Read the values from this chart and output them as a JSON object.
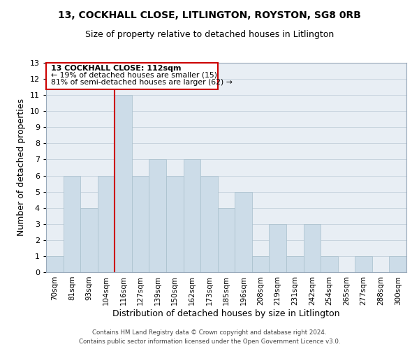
{
  "title1": "13, COCKHALL CLOSE, LITLINGTON, ROYSTON, SG8 0RB",
  "title2": "Size of property relative to detached houses in Litlington",
  "xlabel": "Distribution of detached houses by size in Litlington",
  "ylabel": "Number of detached properties",
  "footer1": "Contains HM Land Registry data © Crown copyright and database right 2024.",
  "footer2": "Contains public sector information licensed under the Open Government Licence v3.0.",
  "bin_labels": [
    "70sqm",
    "81sqm",
    "93sqm",
    "104sqm",
    "116sqm",
    "127sqm",
    "139sqm",
    "150sqm",
    "162sqm",
    "173sqm",
    "185sqm",
    "196sqm",
    "208sqm",
    "219sqm",
    "231sqm",
    "242sqm",
    "254sqm",
    "265sqm",
    "277sqm",
    "288sqm",
    "300sqm"
  ],
  "bar_heights": [
    1,
    6,
    4,
    6,
    11,
    6,
    7,
    6,
    7,
    6,
    4,
    5,
    1,
    3,
    1,
    3,
    1,
    0,
    1,
    0,
    1
  ],
  "bar_color": "#ccdce8",
  "bar_edge_color": "#a8bfcc",
  "highlight_line_color": "#cc0000",
  "annotation_title": "13 COCKHALL CLOSE: 112sqm",
  "annotation_line1": "← 19% of detached houses are smaller (15)",
  "annotation_line2": "81% of semi-detached houses are larger (62) →",
  "annotation_box_color": "#ffffff",
  "annotation_box_edge_color": "#cc0000",
  "ylim_max": 13,
  "background_color": "#ffffff",
  "axes_bg_color": "#e8eef4",
  "grid_color": "#c8d4de"
}
